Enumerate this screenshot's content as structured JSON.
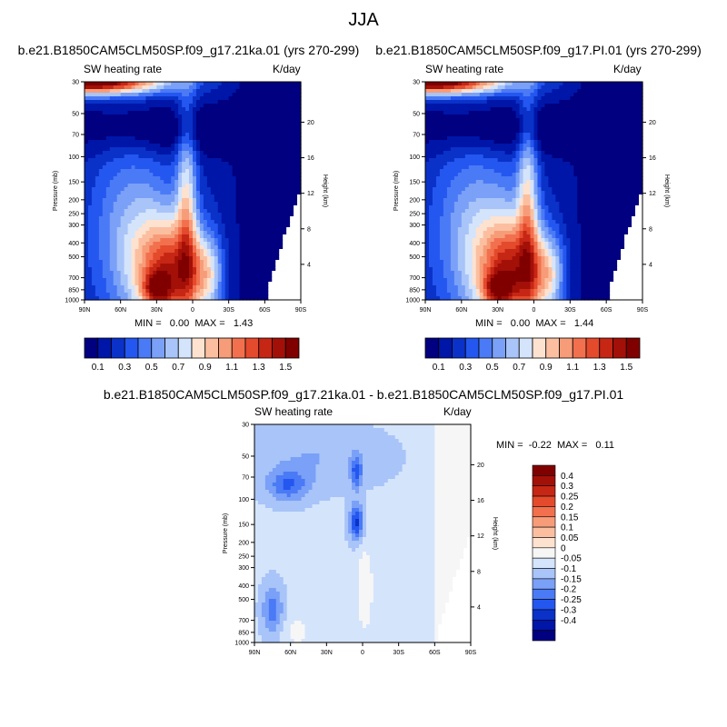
{
  "page": {
    "title": "JJA",
    "diff_title": "b.e21.B1850CAM5CLM50SP.f09_g17.21ka.01 - b.e21.B1850CAM5CLM50SP.f09_g17.PI.01"
  },
  "panels": [
    {
      "case_title": "b.e21.B1850CAM5CLM50SP.f09_g17.21ka.01 (yrs 270-299)",
      "variable": "SW heating rate",
      "units": "K/day",
      "stats": "MIN =   0.00  MAX =   1.43"
    },
    {
      "case_title": "b.e21.B1850CAM5CLM50SP.f09_g17.PI.01 (yrs 270-299)",
      "variable": "SW heating rate",
      "units": "K/day",
      "stats": "MIN =   0.00  MAX =   1.44"
    },
    {
      "case_title": "",
      "variable": "SW heating rate",
      "units": "K/day",
      "stats": "MIN =  -0.22  MAX =   0.11"
    }
  ],
  "colors": {
    "abs_scale": [
      "#000080",
      "#0016a8",
      "#0a32c8",
      "#2456f0",
      "#4a7af5",
      "#7aa0f7",
      "#a8c4f8",
      "#d4e4fb",
      "#fde2d0",
      "#fbbfa0",
      "#f79c78",
      "#f2704e",
      "#e44a2c",
      "#c62614",
      "#a31008",
      "#800000"
    ],
    "diff_scale": [
      "#000080",
      "#0016a8",
      "#0a32c8",
      "#2456f0",
      "#4a7af5",
      "#7aa0f7",
      "#a8c4f8",
      "#d4e4fb",
      "#f6f6f6",
      "#fde2d0",
      "#fbbfa0",
      "#f79c78",
      "#f2704e",
      "#e44a2c",
      "#c62614",
      "#a31008",
      "#800000"
    ]
  },
  "chart_data": [
    {
      "type": "heatmap",
      "title": "b.e21.B1850CAM5CLM50SP.f09_g17.21ka.01 (yrs 270-299)",
      "variable": "SW heating rate",
      "units": "K/day",
      "xlabel": "",
      "ylabel": "Pressure (mb)",
      "y2label": "Height (km)",
      "x_ticks": [
        "90N",
        "60N",
        "30N",
        "0",
        "30S",
        "60S",
        "90S"
      ],
      "x_range": [
        90,
        -90
      ],
      "y_ticks": [
        30,
        50,
        70,
        100,
        150,
        200,
        250,
        300,
        400,
        500,
        700,
        850,
        1000
      ],
      "y_range": [
        1000,
        30
      ],
      "height_ticks": [
        4,
        8,
        12,
        16,
        20
      ],
      "contour_levels": [
        0.1,
        0.2,
        0.3,
        0.4,
        0.5,
        0.6,
        0.7,
        0.8,
        0.9,
        1.0,
        1.1,
        1.2,
        1.3,
        1.4,
        1.5
      ],
      "colorbar_labels": [
        "0.1",
        "0.3",
        "0.5",
        "0.7",
        "0.9",
        "1.1",
        "1.3",
        "1.5"
      ],
      "min": 0.0,
      "max": 1.43
    },
    {
      "type": "heatmap",
      "title": "b.e21.B1850CAM5CLM50SP.f09_g17.PI.01 (yrs 270-299)",
      "variable": "SW heating rate",
      "units": "K/day",
      "xlabel": "",
      "ylabel": "Pressure (mb)",
      "y2label": "Height (km)",
      "x_ticks": [
        "90N",
        "60N",
        "30N",
        "0",
        "30S",
        "60S",
        "90S"
      ],
      "x_range": [
        90,
        -90
      ],
      "y_ticks": [
        30,
        50,
        70,
        100,
        150,
        200,
        250,
        300,
        400,
        500,
        700,
        850,
        1000
      ],
      "y_range": [
        1000,
        30
      ],
      "height_ticks": [
        4,
        8,
        12,
        16,
        20
      ],
      "contour_levels": [
        0.1,
        0.2,
        0.3,
        0.4,
        0.5,
        0.6,
        0.7,
        0.8,
        0.9,
        1.0,
        1.1,
        1.2,
        1.3,
        1.4,
        1.5
      ],
      "colorbar_labels": [
        "0.1",
        "0.3",
        "0.5",
        "0.7",
        "0.9",
        "1.1",
        "1.3",
        "1.5"
      ],
      "min": 0.0,
      "max": 1.44
    },
    {
      "type": "heatmap",
      "title": "b.e21.B1850CAM5CLM50SP.f09_g17.21ka.01 - b.e21.B1850CAM5CLM50SP.f09_g17.PI.01",
      "variable": "SW heating rate",
      "units": "K/day",
      "xlabel": "",
      "ylabel": "Pressure (mb)",
      "y2label": "Height (km)",
      "x_ticks": [
        "90N",
        "60N",
        "30N",
        "0",
        "30S",
        "60S",
        "90S"
      ],
      "x_range": [
        90,
        -90
      ],
      "y_ticks": [
        30,
        50,
        70,
        100,
        150,
        200,
        250,
        300,
        400,
        500,
        700,
        850,
        1000
      ],
      "y_range": [
        1000,
        30
      ],
      "height_ticks": [
        4,
        8,
        12,
        16,
        20
      ],
      "contour_levels": [
        -0.4,
        -0.3,
        -0.25,
        -0.2,
        -0.15,
        -0.1,
        -0.05,
        0,
        0.05,
        0.1,
        0.15,
        0.2,
        0.25,
        0.3,
        0.4
      ],
      "colorbar_labels": [
        "0.4",
        "0.3",
        "0.25",
        "0.2",
        "0.15",
        "0.1",
        "0.05",
        "0",
        "-0.05",
        "-0.1",
        "-0.15",
        "-0.2",
        "-0.25",
        "-0.3",
        "-0.4"
      ],
      "min": -0.22,
      "max": 0.11
    }
  ]
}
